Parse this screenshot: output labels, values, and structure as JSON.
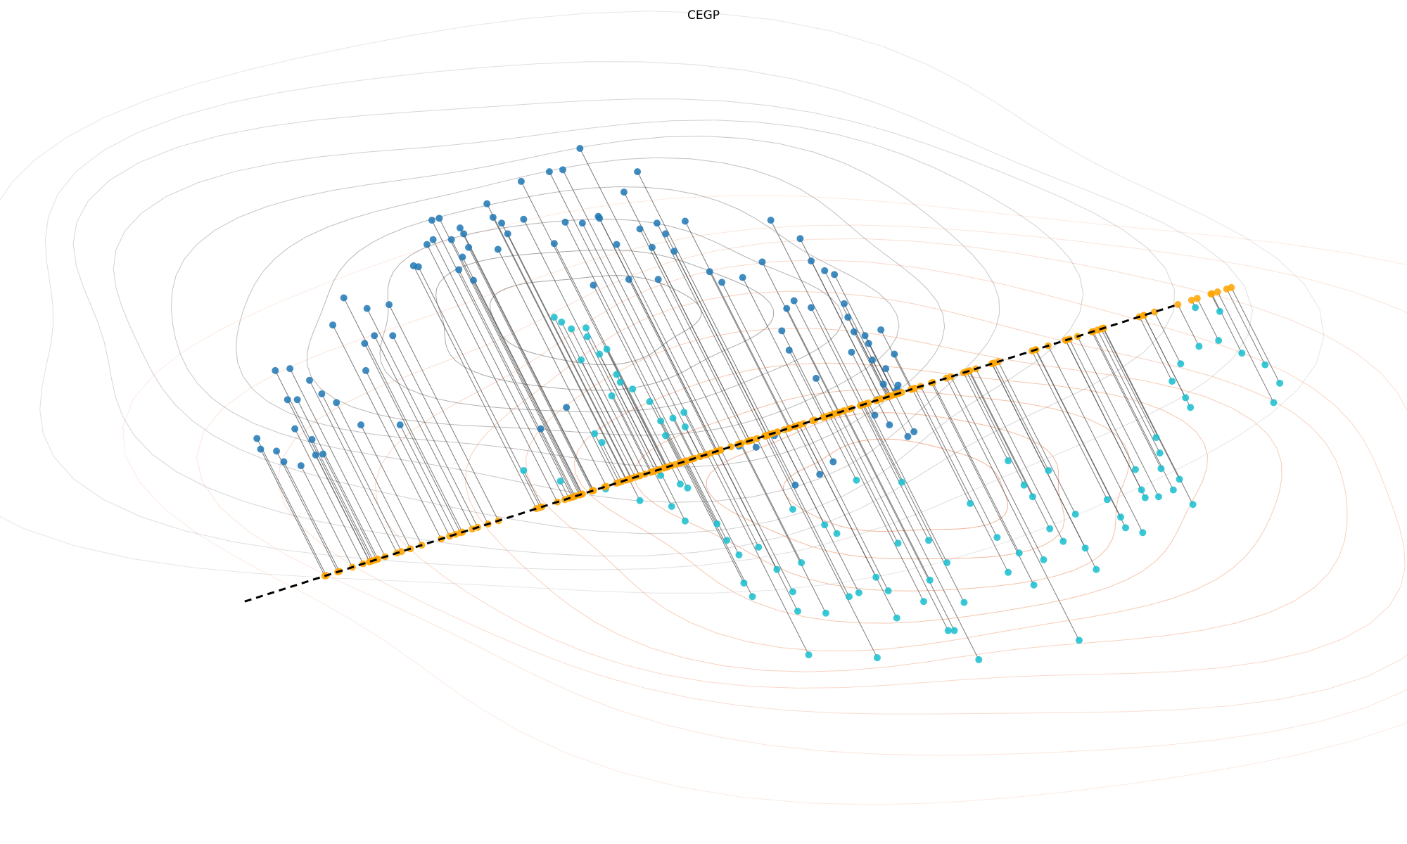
{
  "chart_data": {
    "type": "scatter",
    "title": "CEGP",
    "xlabel": "",
    "ylabel": "",
    "axes": "off",
    "grid": false,
    "legend": "none",
    "xlim": [
      -1.0,
      10.5
    ],
    "ylim": [
      -0.5,
      8.2
    ],
    "projection_line": {
      "x": [
        1.0,
        8.6
      ],
      "y": [
        2.0,
        5.05
      ],
      "color": "#000000",
      "style": "dashed"
    },
    "colors": {
      "source": "#1f77b4",
      "target": "#17becf",
      "projected": "#ffa500",
      "links": "#4d4d4d",
      "source_contours": "#555555",
      "target_contours": "#e8743b"
    },
    "series": [
      {
        "role": "source",
        "points": [
          [
            3.74,
            6.67
          ],
          [
            3.49,
            6.43
          ],
          [
            3.6,
            6.45
          ],
          [
            4.21,
            6.43
          ],
          [
            4.1,
            6.22
          ],
          [
            3.26,
            6.33
          ],
          [
            2.98,
            6.1
          ],
          [
            3.89,
            5.97
          ],
          [
            3.9,
            5.95
          ],
          [
            4.23,
            5.84
          ],
          [
            3.76,
            5.9
          ],
          [
            3.62,
            5.91
          ],
          [
            2.53,
            5.93
          ],
          [
            2.59,
            5.95
          ],
          [
            3.28,
            5.94
          ],
          [
            3.1,
            5.9
          ],
          [
            3.03,
            5.96
          ],
          [
            2.76,
            5.85
          ],
          [
            2.79,
            5.79
          ],
          [
            3.15,
            5.79
          ],
          [
            2.49,
            5.68
          ],
          [
            2.54,
            5.73
          ],
          [
            2.69,
            5.73
          ],
          [
            2.83,
            5.65
          ],
          [
            4.6,
            5.92
          ],
          [
            3.53,
            5.69
          ],
          [
            3.07,
            5.63
          ],
          [
            2.78,
            5.55
          ],
          [
            2.38,
            5.46
          ],
          [
            2.75,
            5.42
          ],
          [
            2.87,
            5.31
          ],
          [
            2.42,
            5.45
          ],
          [
            4.04,
            5.68
          ],
          [
            4.51,
            5.61
          ],
          [
            4.44,
            5.79
          ],
          [
            4.33,
            5.65
          ],
          [
            4.37,
            5.9
          ],
          [
            5.3,
            5.93
          ],
          [
            5.54,
            5.74
          ],
          [
            5.63,
            5.51
          ],
          [
            5.74,
            5.41
          ],
          [
            4.8,
            5.4
          ],
          [
            5.82,
            5.37
          ],
          [
            4.38,
            5.32
          ],
          [
            4.14,
            5.32
          ],
          [
            3.85,
            5.26
          ],
          [
            4.9,
            5.29
          ],
          [
            5.23,
            5.5
          ],
          [
            5.07,
            5.34
          ],
          [
            2.18,
            5.06
          ],
          [
            2.0,
            5.02
          ],
          [
            1.81,
            5.13
          ],
          [
            1.72,
            4.85
          ],
          [
            2.06,
            4.74
          ],
          [
            2.21,
            4.74
          ],
          [
            1.98,
            4.66
          ],
          [
            1.37,
            4.4
          ],
          [
            1.25,
            4.38
          ],
          [
            1.99,
            4.38
          ],
          [
            1.53,
            4.28
          ],
          [
            1.43,
            4.08
          ],
          [
            1.35,
            4.08
          ],
          [
            1.63,
            4.14
          ],
          [
            1.75,
            4.05
          ],
          [
            2.27,
            3.82
          ],
          [
            1.41,
            3.78
          ],
          [
            1.1,
            3.68
          ],
          [
            1.13,
            3.57
          ],
          [
            1.26,
            3.55
          ],
          [
            1.32,
            3.44
          ],
          [
            1.95,
            3.82
          ],
          [
            1.58,
            3.51
          ],
          [
            1.64,
            3.52
          ],
          [
            1.55,
            3.67
          ],
          [
            1.46,
            3.4
          ],
          [
            3.42,
            3.78
          ],
          [
            3.63,
            4.0
          ],
          [
            5.04,
            3.6
          ],
          [
            5.18,
            3.59
          ],
          [
            5.33,
            3.71
          ],
          [
            5.81,
            3.44
          ],
          [
            5.7,
            3.31
          ],
          [
            5.5,
            3.2
          ],
          [
            5.45,
            4.59
          ],
          [
            5.39,
            4.79
          ],
          [
            5.43,
            5.02
          ],
          [
            5.49,
            5.1
          ],
          [
            5.63,
            5.03
          ],
          [
            5.93,
            4.93
          ],
          [
            5.9,
            5.07
          ],
          [
            6.07,
            4.74
          ],
          [
            6.1,
            4.66
          ],
          [
            5.98,
            4.78
          ],
          [
            6.13,
            4.49
          ],
          [
            5.96,
            4.57
          ],
          [
            6.22,
            4.24
          ],
          [
            6.34,
            4.23
          ],
          [
            6.17,
            4.08
          ],
          [
            6.33,
            4.18
          ],
          [
            6.2,
            4.8
          ],
          [
            6.15,
            3.92
          ],
          [
            6.27,
            3.82
          ],
          [
            6.24,
            4.4
          ],
          [
            6.31,
            4.55
          ],
          [
            5.67,
            4.3
          ],
          [
            6.47,
            3.75
          ],
          [
            6.42,
            3.7
          ]
        ]
      },
      {
        "role": "target",
        "points": [
          [
            3.59,
            4.88
          ],
          [
            3.8,
            4.73
          ],
          [
            3.79,
            4.82
          ],
          [
            3.9,
            4.55
          ],
          [
            3.53,
            4.93
          ],
          [
            3.67,
            4.81
          ],
          [
            3.96,
            4.6
          ],
          [
            3.75,
            4.49
          ],
          [
            4.04,
            4.34
          ],
          [
            4.17,
            4.19
          ],
          [
            4.07,
            4.26
          ],
          [
            4.0,
            4.12
          ],
          [
            4.31,
            4.06
          ],
          [
            4.4,
            3.86
          ],
          [
            4.6,
            3.8
          ],
          [
            3.86,
            3.73
          ],
          [
            3.92,
            3.64
          ],
          [
            4.5,
            3.89
          ],
          [
            4.59,
            3.95
          ],
          [
            4.44,
            3.71
          ],
          [
            3.28,
            3.35
          ],
          [
            3.58,
            3.24
          ],
          [
            4.4,
            3.3
          ],
          [
            4.56,
            3.21
          ],
          [
            4.62,
            3.17
          ],
          [
            3.95,
            3.16
          ],
          [
            4.23,
            3.04
          ],
          [
            4.49,
            2.98
          ],
          [
            4.6,
            2.83
          ],
          [
            4.86,
            2.8
          ],
          [
            4.94,
            2.63
          ],
          [
            5.2,
            2.56
          ],
          [
            5.04,
            2.48
          ],
          [
            5.08,
            2.19
          ],
          [
            5.15,
            2.05
          ],
          [
            5.35,
            2.33
          ],
          [
            5.48,
            2.1
          ],
          [
            5.55,
            2.4
          ],
          [
            5.52,
            1.9
          ],
          [
            5.75,
            1.88
          ],
          [
            5.94,
            2.05
          ],
          [
            5.84,
            2.7
          ],
          [
            6.02,
            2.09
          ],
          [
            6.16,
            2.25
          ],
          [
            6.26,
            2.11
          ],
          [
            6.33,
            1.83
          ],
          [
            6.34,
            2.6
          ],
          [
            6.55,
            2.0
          ],
          [
            6.6,
            2.22
          ],
          [
            6.75,
            1.7
          ],
          [
            6.8,
            1.7
          ],
          [
            6.88,
            1.99
          ],
          [
            6.74,
            2.4
          ],
          [
            7.15,
            2.66
          ],
          [
            7.24,
            2.3
          ],
          [
            7.33,
            2.5
          ],
          [
            7.45,
            2.17
          ],
          [
            7.53,
            2.43
          ],
          [
            7.87,
            2.55
          ],
          [
            7.96,
            2.33
          ],
          [
            8.16,
            2.87
          ],
          [
            8.2,
            2.76
          ],
          [
            8.36,
            3.07
          ],
          [
            8.33,
            3.15
          ],
          [
            8.05,
            3.05
          ],
          [
            8.47,
            3.08
          ],
          [
            8.64,
            3.26
          ],
          [
            8.49,
            3.37
          ],
          [
            8.59,
            3.15
          ],
          [
            8.75,
            3.0
          ],
          [
            8.48,
            3.53
          ],
          [
            8.45,
            3.69
          ],
          [
            8.69,
            4.1
          ],
          [
            8.73,
            4.0
          ],
          [
            8.58,
            4.27
          ],
          [
            8.65,
            4.45
          ],
          [
            8.8,
            4.63
          ],
          [
            8.96,
            4.69
          ],
          [
            8.77,
            5.03
          ],
          [
            9.15,
            4.56
          ],
          [
            9.41,
            4.05
          ],
          [
            9.46,
            4.25
          ],
          [
            9.34,
            4.44
          ],
          [
            8.97,
            4.99
          ],
          [
            7.58,
            2.75
          ],
          [
            7.69,
            2.62
          ],
          [
            7.0,
            1.4
          ],
          [
            7.82,
            1.6
          ],
          [
            6.17,
            1.42
          ],
          [
            5.61,
            1.45
          ],
          [
            7.24,
            3.45
          ],
          [
            7.37,
            3.2
          ],
          [
            6.93,
            3.01
          ],
          [
            6.59,
            2.63
          ],
          [
            6.0,
            3.25
          ],
          [
            6.37,
            3.23
          ],
          [
            7.44,
            3.08
          ],
          [
            7.57,
            3.35
          ],
          [
            7.79,
            2.9
          ],
          [
            8.28,
            3.36
          ],
          [
            8.34,
            2.71
          ],
          [
            5.74,
            2.79
          ],
          [
            5.48,
            2.95
          ]
        ]
      }
    ]
  }
}
